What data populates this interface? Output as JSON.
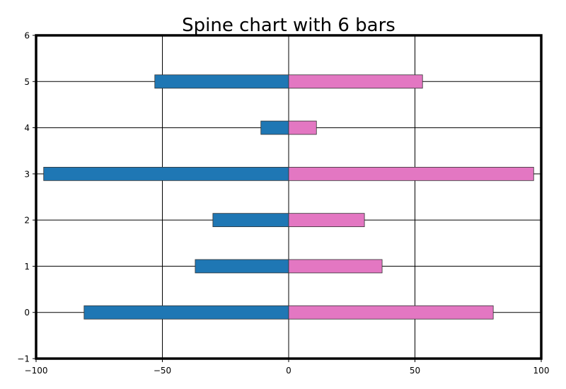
{
  "chart_data": {
    "type": "bar",
    "title": "Spine chart with 6 bars",
    "xlabel": "",
    "ylabel": "",
    "orientation": "horizontal",
    "categories": [
      "0",
      "1",
      "2",
      "3",
      "4",
      "5"
    ],
    "series": [
      {
        "values": [
          -81,
          -37,
          -30,
          -97,
          -11,
          -53
        ],
        "color": "#1f77b4"
      },
      {
        "values": [
          81,
          37,
          30,
          97,
          11,
          53
        ],
        "color": "#e377c2"
      }
    ],
    "xlim": [
      -100,
      100
    ],
    "ylim": [
      -1,
      6
    ],
    "xticks": [
      "−100",
      "−50",
      "0",
      "50",
      "100"
    ],
    "yticks": [
      "−1",
      "0",
      "1",
      "2",
      "3",
      "4",
      "5",
      "6"
    ],
    "grid": true,
    "legend": "none"
  }
}
